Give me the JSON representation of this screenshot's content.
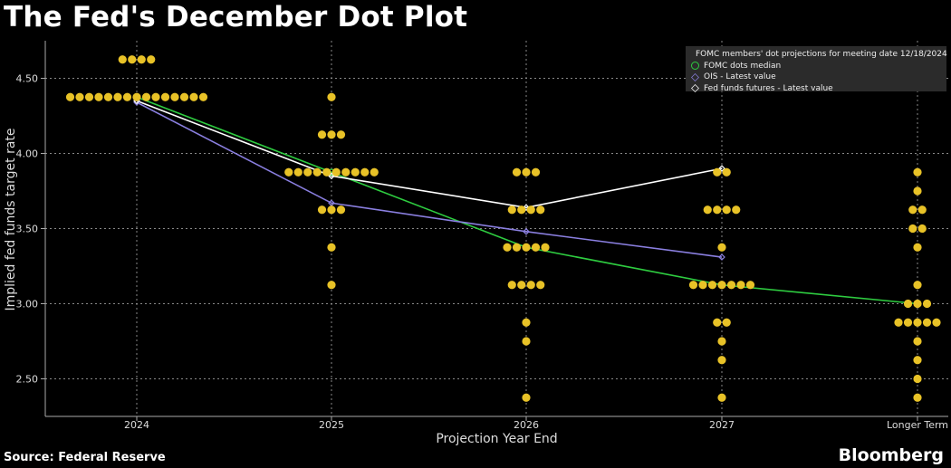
{
  "title": "The Fed's December Dot Plot",
  "source": "Source: Federal Reserve",
  "brand": "Bloomberg",
  "colors": {
    "dots": "#e8c227",
    "median": "#2ecc40",
    "ois": "#8a7fe0",
    "futures": "#ffffff",
    "grid": "#888888"
  },
  "legend": [
    {
      "label": "FOMC members' dot projections for meeting date 12/18/2024",
      "symbol": "filled-circle",
      "color": "#e8c227"
    },
    {
      "label": "FOMC dots median",
      "symbol": "hollow-circle",
      "color": "#2ecc40"
    },
    {
      "label": "OIS - Latest value",
      "symbol": "hollow-diamond",
      "color": "#8a7fe0"
    },
    {
      "label": "Fed funds futures - Latest value",
      "symbol": "hollow-diamond",
      "color": "#ffffff"
    }
  ],
  "chart_data": {
    "type": "scatter",
    "xlabel": "Projection Year End",
    "ylabel": "Implied fed funds target rate",
    "categories": [
      "2024",
      "2025",
      "2026",
      "2027",
      "Longer Term"
    ],
    "ylim": [
      2.25,
      4.75
    ],
    "yticks": [
      "2.50",
      "3.00",
      "3.50",
      "4.00",
      "4.50"
    ],
    "grid": true,
    "legend_position": "top-right",
    "dots": [
      {
        "category": "2024",
        "counts": [
          {
            "y": 4.625,
            "n": 4
          },
          {
            "y": 4.375,
            "n": 15
          }
        ]
      },
      {
        "category": "2025",
        "counts": [
          {
            "y": 4.375,
            "n": 1
          },
          {
            "y": 4.125,
            "n": 3
          },
          {
            "y": 3.875,
            "n": 10
          },
          {
            "y": 3.625,
            "n": 3
          },
          {
            "y": 3.375,
            "n": 1
          },
          {
            "y": 3.125,
            "n": 1
          }
        ]
      },
      {
        "category": "2026",
        "counts": [
          {
            "y": 3.875,
            "n": 3
          },
          {
            "y": 3.625,
            "n": 4
          },
          {
            "y": 3.375,
            "n": 5
          },
          {
            "y": 3.125,
            "n": 4
          },
          {
            "y": 2.875,
            "n": 1
          },
          {
            "y": 2.75,
            "n": 1
          },
          {
            "y": 2.375,
            "n": 1
          }
        ]
      },
      {
        "category": "2027",
        "counts": [
          {
            "y": 3.875,
            "n": 2
          },
          {
            "y": 3.625,
            "n": 4
          },
          {
            "y": 3.375,
            "n": 1
          },
          {
            "y": 3.125,
            "n": 7
          },
          {
            "y": 2.875,
            "n": 2
          },
          {
            "y": 2.75,
            "n": 1
          },
          {
            "y": 2.625,
            "n": 1
          },
          {
            "y": 2.375,
            "n": 1
          }
        ]
      },
      {
        "category": "Longer Term",
        "counts": [
          {
            "y": 3.875,
            "n": 1
          },
          {
            "y": 3.75,
            "n": 1
          },
          {
            "y": 3.625,
            "n": 2
          },
          {
            "y": 3.5,
            "n": 2
          },
          {
            "y": 3.375,
            "n": 1
          },
          {
            "y": 3.125,
            "n": 1
          },
          {
            "y": 3.0,
            "n": 3
          },
          {
            "y": 2.875,
            "n": 5
          },
          {
            "y": 2.75,
            "n": 1
          },
          {
            "y": 2.625,
            "n": 1
          },
          {
            "y": 2.5,
            "n": 1
          },
          {
            "y": 2.375,
            "n": 1
          }
        ]
      }
    ],
    "series": [
      {
        "name": "FOMC dots median",
        "values": [
          4.375,
          3.875,
          3.375,
          3.125,
          3.0
        ]
      },
      {
        "name": "OIS - Latest value",
        "values": [
          4.34,
          3.67,
          3.48,
          3.31,
          null
        ]
      },
      {
        "name": "Fed funds futures - Latest value",
        "values": [
          4.35,
          3.85,
          3.64,
          3.9,
          null
        ]
      }
    ]
  }
}
